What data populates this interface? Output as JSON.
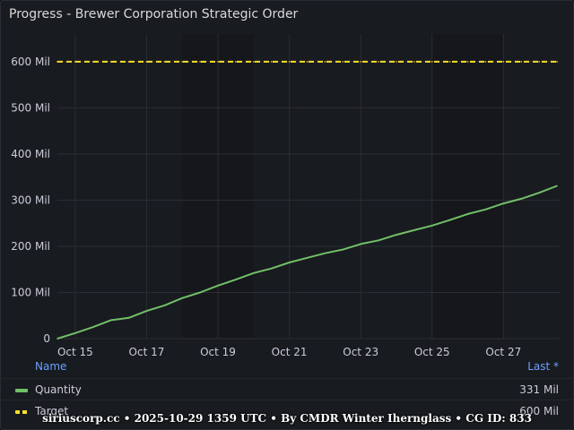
{
  "panel": {
    "title": "Progress - Brewer Corporation Strategic Order"
  },
  "chart_data": {
    "type": "line",
    "title": "Progress - Brewer Corporation Strategic Order",
    "xlabel": "",
    "ylabel": "",
    "ylim": [
      0,
      660
    ],
    "y_ticks": [
      "0",
      "100 Mil",
      "200 Mil",
      "300 Mil",
      "400 Mil",
      "500 Mil",
      "600 Mil"
    ],
    "x_ticks": [
      "Oct 15",
      "Oct 17",
      "Oct 19",
      "Oct 21",
      "Oct 23",
      "Oct 25",
      "Oct 27"
    ],
    "x": [
      "2025-10-14T12:00",
      "2025-10-15T00:00",
      "2025-10-15T12:00",
      "2025-10-16T00:00",
      "2025-10-16T12:00",
      "2025-10-17T00:00",
      "2025-10-17T12:00",
      "2025-10-18T00:00",
      "2025-10-18T12:00",
      "2025-10-19T00:00",
      "2025-10-19T12:00",
      "2025-10-20T00:00",
      "2025-10-20T12:00",
      "2025-10-21T00:00",
      "2025-10-21T12:00",
      "2025-10-22T00:00",
      "2025-10-22T12:00",
      "2025-10-23T00:00",
      "2025-10-23T12:00",
      "2025-10-24T00:00",
      "2025-10-24T12:00",
      "2025-10-25T00:00",
      "2025-10-25T12:00",
      "2025-10-26T00:00",
      "2025-10-26T12:00",
      "2025-10-27T00:00",
      "2025-10-27T12:00",
      "2025-10-28T00:00",
      "2025-10-28T12:00"
    ],
    "series": [
      {
        "name": "Quantity",
        "color": "#73bf69",
        "values": [
          0,
          12,
          25,
          40,
          45,
          60,
          72,
          88,
          100,
          115,
          128,
          142,
          152,
          165,
          175,
          185,
          193,
          205,
          213,
          225,
          235,
          245,
          257,
          270,
          280,
          293,
          303,
          316,
          331
        ]
      },
      {
        "name": "Target",
        "color": "#fade2a",
        "style": "dashed",
        "values": [
          600,
          600,
          600,
          600,
          600,
          600,
          600,
          600,
          600,
          600,
          600,
          600,
          600,
          600,
          600,
          600,
          600,
          600,
          600,
          600,
          600,
          600,
          600,
          600,
          600,
          600,
          600,
          600,
          600
        ]
      }
    ]
  },
  "legend": {
    "name_header": "Name",
    "last_header": "Last *",
    "rows": [
      {
        "name": "Quantity",
        "last": "331 Mil",
        "color": "#73bf69"
      },
      {
        "name": "Target",
        "last": "600 Mil",
        "color": "#fade2a"
      }
    ]
  },
  "watermark": "siriuscorp.cc • 2025-10-29 1359 UTC • By CMDR Winter Iherngl­ass • CG ID: 833"
}
